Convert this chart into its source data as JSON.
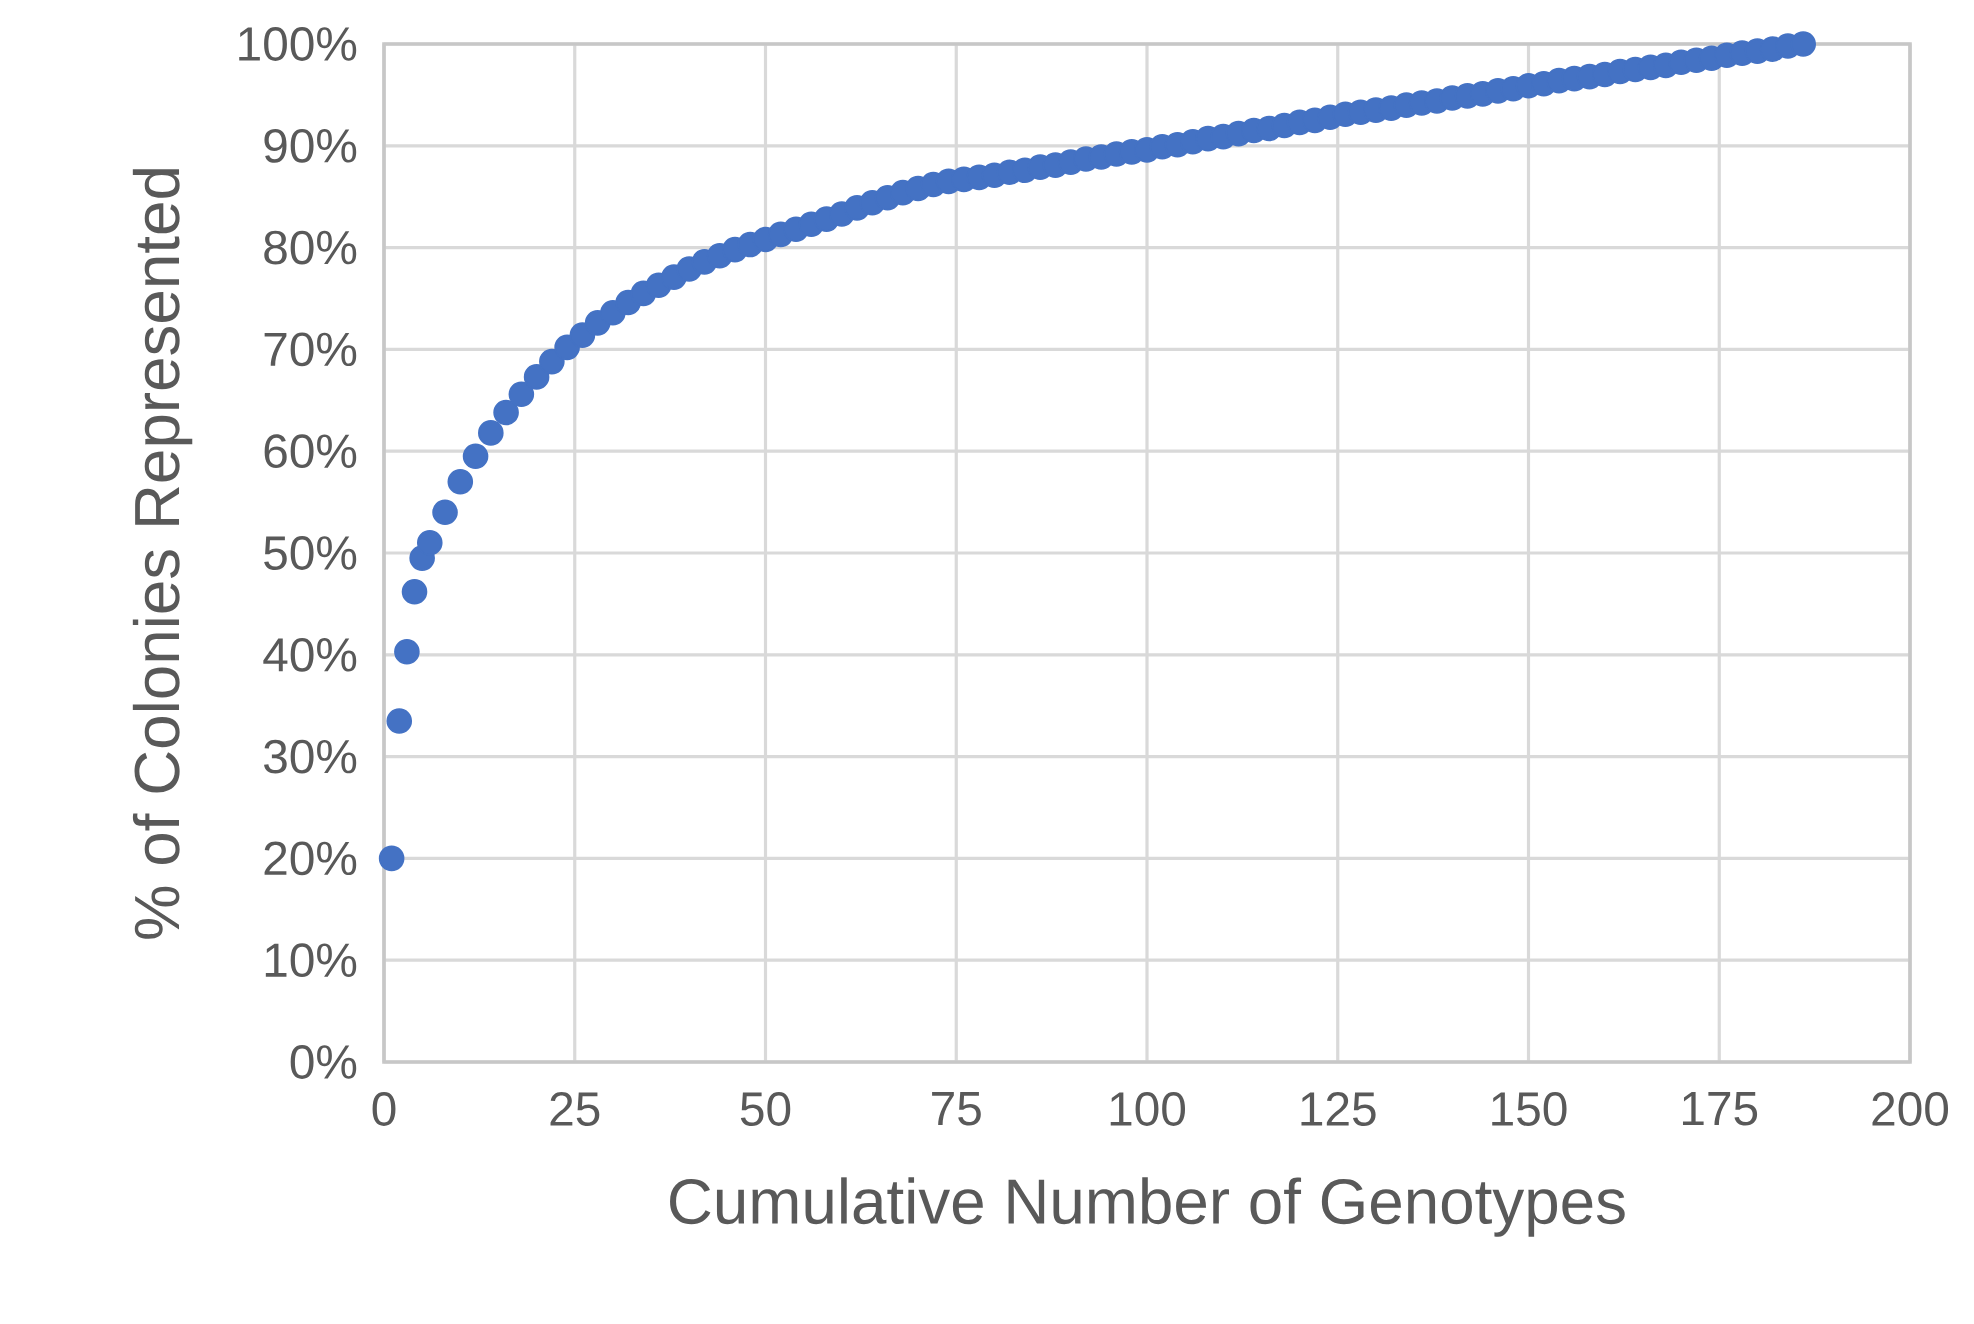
{
  "chart_data": {
    "type": "scatter",
    "xlabel": "Cumulative Number of Genotypes",
    "ylabel": "% of Colonies Represented",
    "xlim": [
      0,
      200
    ],
    "xticks": [
      0,
      25,
      50,
      75,
      100,
      125,
      150,
      175,
      200
    ],
    "ylim": [
      0,
      100
    ],
    "yticks": [
      {
        "value": 0,
        "label": "0%"
      },
      {
        "value": 10,
        "label": "10%"
      },
      {
        "value": 20,
        "label": "20%"
      },
      {
        "value": 30,
        "label": "30%"
      },
      {
        "value": 40,
        "label": "40%"
      },
      {
        "value": 50,
        "label": "50%"
      },
      {
        "value": 60,
        "label": "60%"
      },
      {
        "value": 70,
        "label": "70%"
      },
      {
        "value": 80,
        "label": "80%"
      },
      {
        "value": 90,
        "label": "90%"
      },
      {
        "value": 100,
        "label": "100%"
      }
    ],
    "grid": true,
    "marker": "circle",
    "color": "#4472c4",
    "x": [
      1,
      2,
      3,
      4,
      5,
      6,
      8,
      10,
      12,
      14,
      16,
      18,
      20,
      22,
      24,
      26,
      28,
      30,
      32,
      34,
      36,
      38,
      40,
      42,
      44,
      46,
      48,
      50,
      52,
      54,
      56,
      58,
      60,
      62,
      64,
      66,
      68,
      70,
      72,
      74,
      76,
      78,
      80,
      82,
      84,
      86,
      88,
      90,
      92,
      94,
      96,
      98,
      100,
      102,
      104,
      106,
      108,
      110,
      112,
      114,
      116,
      118,
      120,
      122,
      124,
      126,
      128,
      130,
      132,
      134,
      136,
      138,
      140,
      142,
      144,
      146,
      148,
      150,
      152,
      154,
      156,
      158,
      160,
      162,
      164,
      166,
      168,
      170,
      172,
      174,
      176,
      178,
      180,
      182,
      184,
      186
    ],
    "values": [
      20.0,
      33.5,
      40.3,
      46.2,
      49.5,
      51.0,
      54.0,
      57.0,
      59.5,
      61.8,
      63.8,
      65.6,
      67.3,
      68.8,
      70.2,
      71.4,
      72.6,
      73.6,
      74.6,
      75.5,
      76.3,
      77.1,
      77.9,
      78.6,
      79.2,
      79.8,
      80.3,
      80.8,
      81.3,
      81.8,
      82.3,
      82.8,
      83.3,
      83.9,
      84.4,
      84.9,
      85.4,
      85.8,
      86.2,
      86.5,
      86.7,
      86.9,
      87.1,
      87.4,
      87.6,
      87.9,
      88.1,
      88.4,
      88.7,
      88.9,
      89.2,
      89.4,
      89.6,
      89.9,
      90.1,
      90.4,
      90.7,
      90.9,
      91.2,
      91.5,
      91.7,
      92.0,
      92.3,
      92.5,
      92.8,
      93.1,
      93.3,
      93.5,
      93.7,
      94.0,
      94.2,
      94.4,
      94.7,
      94.9,
      95.1,
      95.4,
      95.6,
      95.9,
      96.1,
      96.4,
      96.6,
      96.8,
      97.0,
      97.3,
      97.5,
      97.7,
      97.9,
      98.2,
      98.4,
      98.6,
      98.9,
      99.1,
      99.3,
      99.5,
      99.8,
      100.0
    ]
  }
}
